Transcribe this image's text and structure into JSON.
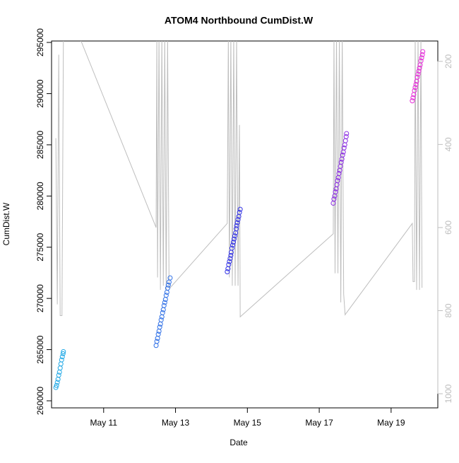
{
  "chart_data": {
    "type": "scatter",
    "title": "ATOM4 Northbound CumDist.W",
    "x_label": "Date",
    "y_label": "CumDist.W",
    "xlim": [
      9.55,
      20.3
    ],
    "xticks": [
      {
        "value": 11,
        "label": "May 11"
      },
      {
        "value": 13,
        "label": "May 13"
      },
      {
        "value": 15,
        "label": "May 15"
      },
      {
        "value": 17,
        "label": "May 17"
      },
      {
        "value": 19,
        "label": "May 19"
      }
    ],
    "ylim": [
      259310,
      295140
    ],
    "yticks": [
      260000,
      265000,
      270000,
      275000,
      280000,
      285000,
      290000,
      295000
    ],
    "y2lim": [
      1034,
      151
    ],
    "y2ticks": [
      200,
      400,
      600,
      800,
      1000
    ],
    "y2_color": "#bebebe",
    "series": [
      {
        "type": "line",
        "axis": "y2",
        "color": "#bebebe",
        "x": [
          9.67,
          9.71,
          9.75,
          9.79,
          9.84,
          9.88,
          10.32,
          12.46,
          12.48,
          12.5,
          12.54,
          12.58,
          12.62,
          12.66,
          12.7,
          12.74,
          12.78,
          12.82,
          12.85,
          14.44,
          14.47,
          14.5,
          14.54,
          14.58,
          14.62,
          14.66,
          14.7,
          14.74,
          14.78,
          14.8,
          17.39,
          17.41,
          17.44,
          17.48,
          17.52,
          17.56,
          17.6,
          17.64,
          17.68,
          17.72,
          17.76,
          19.59,
          19.61,
          19.65,
          19.67,
          19.71,
          19.75,
          19.79,
          19.83,
          19.86
        ],
        "values": [
          385,
          785,
          184,
          812,
          812,
          140,
          140,
          600,
          140,
          720,
          140,
          750,
          140,
          740,
          140,
          750,
          140,
          740,
          745,
          590,
          140,
          720,
          140,
          740,
          140,
          740,
          140,
          740,
          353,
          815,
          615,
          140,
          710,
          140,
          710,
          140,
          780,
          140,
          760,
          810,
          805,
          590,
          730,
          730,
          140,
          750,
          140,
          750,
          140,
          745
        ]
      },
      {
        "type": "scatter",
        "color": "#1fa8e6",
        "x": [
          9.67,
          9.69,
          9.71,
          9.73,
          9.75,
          9.77,
          9.79,
          9.81,
          9.83,
          9.85,
          9.87,
          9.88
        ],
        "values": [
          261300,
          261500,
          261800,
          262100,
          262500,
          262800,
          263200,
          263600,
          264000,
          264300,
          264600,
          264800
        ]
      },
      {
        "type": "scatter",
        "color": "#2e6fe6",
        "x": [
          12.46,
          12.48,
          12.5,
          12.52,
          12.54,
          12.56,
          12.58,
          12.6,
          12.62,
          12.64,
          12.66,
          12.68,
          12.7,
          12.72,
          12.74,
          12.76,
          12.78,
          12.8,
          12.82,
          12.85
        ],
        "values": [
          265400,
          265800,
          266100,
          266500,
          266800,
          267200,
          267500,
          267900,
          268200,
          268600,
          268900,
          269300,
          269600,
          269900,
          270300,
          270600,
          271000,
          271300,
          271600,
          272000
        ]
      },
      {
        "type": "scatter",
        "color": "#3333e6",
        "x": [
          14.44,
          14.46,
          14.48,
          14.5,
          14.52,
          14.54,
          14.55,
          14.57,
          14.59,
          14.61,
          14.63,
          14.65,
          14.67,
          14.69,
          14.7,
          14.72,
          14.74,
          14.76,
          14.78,
          14.8
        ],
        "values": [
          272600,
          272900,
          273300,
          273600,
          273900,
          274200,
          274500,
          274900,
          275200,
          275500,
          275800,
          276100,
          276400,
          276800,
          277100,
          277400,
          277700,
          278000,
          278400,
          278700
        ]
      },
      {
        "type": "scatter",
        "color": "#8a2be2",
        "x": [
          17.39,
          17.41,
          17.43,
          17.45,
          17.47,
          17.49,
          17.51,
          17.53,
          17.55,
          17.57,
          17.59,
          17.61,
          17.63,
          17.65,
          17.67,
          17.69,
          17.71,
          17.73,
          17.75,
          17.76
        ],
        "values": [
          279300,
          279700,
          280000,
          280400,
          280700,
          281100,
          281500,
          281800,
          282200,
          282500,
          282900,
          283300,
          283600,
          284000,
          284300,
          284700,
          285000,
          285400,
          285800,
          286100
        ]
      },
      {
        "type": "scatter",
        "color": "#e62bd9",
        "x": [
          19.59,
          19.61,
          19.63,
          19.65,
          19.67,
          19.69,
          19.71,
          19.73,
          19.75,
          19.77,
          19.79,
          19.81,
          19.83,
          19.85,
          19.87,
          19.88
        ],
        "values": [
          289300,
          289600,
          289900,
          290300,
          290600,
          290900,
          291200,
          291600,
          291900,
          292200,
          292500,
          292800,
          293200,
          293500,
          293800,
          294100
        ]
      }
    ]
  }
}
